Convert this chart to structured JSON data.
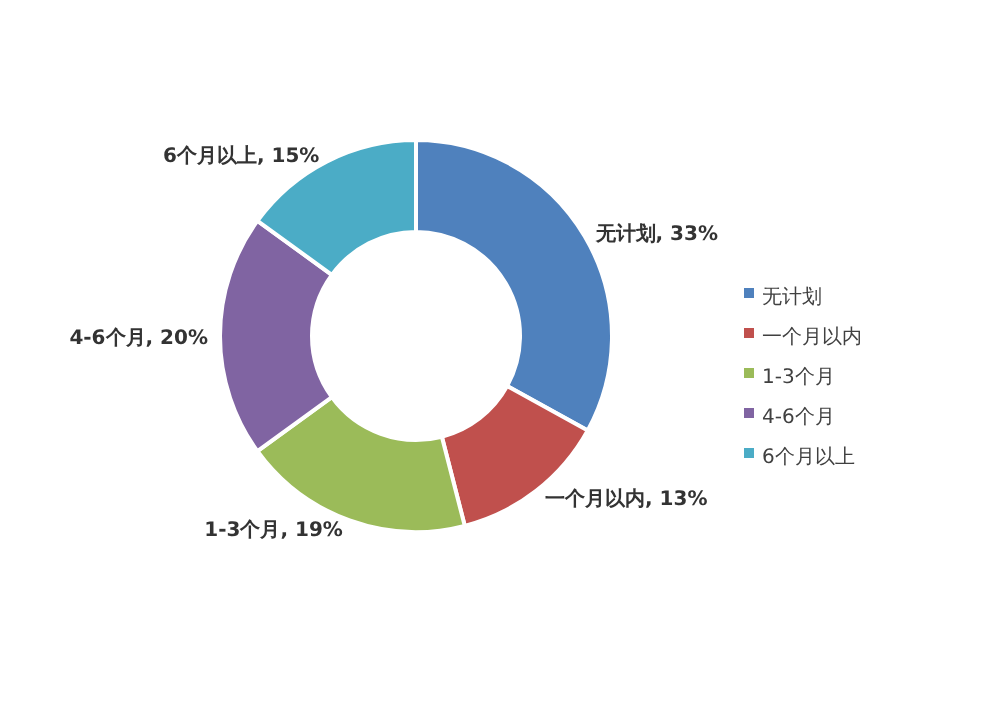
{
  "chart_data": {
    "type": "donut",
    "categories": [
      "无计划",
      "一个月以内",
      "1-3个月",
      "4-6个月",
      "6个月以上"
    ],
    "values": [
      33,
      13,
      19,
      20,
      15
    ],
    "value_labels": [
      "无计划, 33%",
      "一个月以内, 13%",
      "1-3个月, 19%",
      "4-6个月, 20%",
      "6个月以上, 15%"
    ],
    "colors": [
      "#4f81bd",
      "#c0504d",
      "#9bbb59",
      "#8064a2",
      "#4bacc6"
    ],
    "legend": "right"
  }
}
